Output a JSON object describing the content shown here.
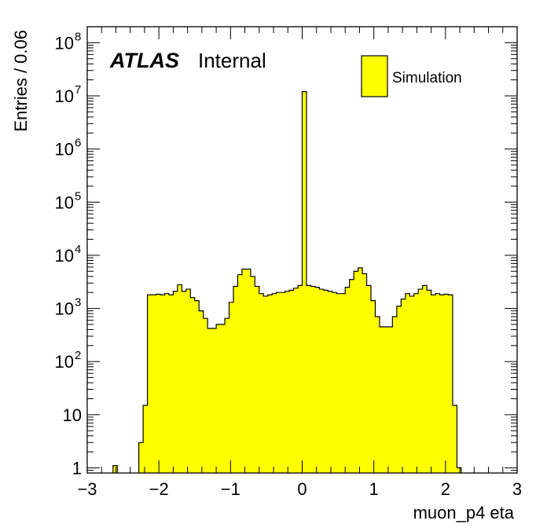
{
  "chart_data": {
    "type": "histogram",
    "experiment_label": "ATLAS",
    "status_label": "Internal",
    "xlabel": "muon_p4 eta",
    "ylabel": "Entries / 0.06",
    "xlim": [
      -3,
      3
    ],
    "ylim": [
      0.8,
      200000000
    ],
    "y_scale": "log",
    "bin_width": 0.06,
    "fill_color": "#ffff00",
    "line_color": "#000000",
    "legend": {
      "placement": "top-right",
      "entries": [
        "Simulation"
      ]
    },
    "x_ticks": [
      {
        "value": -3,
        "label": "−3"
      },
      {
        "value": -2,
        "label": "−2"
      },
      {
        "value": -1,
        "label": "−1"
      },
      {
        "value": 0,
        "label": "0"
      },
      {
        "value": 1,
        "label": "1"
      },
      {
        "value": 2,
        "label": "2"
      },
      {
        "value": 3,
        "label": "3"
      }
    ],
    "y_ticks": [
      {
        "value": 1,
        "base": "1",
        "exp": ""
      },
      {
        "value": 10,
        "base": "10",
        "exp": ""
      },
      {
        "value": 100,
        "base": "10",
        "exp": "2"
      },
      {
        "value": 1000,
        "base": "10",
        "exp": "3"
      },
      {
        "value": 10000,
        "base": "10",
        "exp": "4"
      },
      {
        "value": 100000,
        "base": "10",
        "exp": "5"
      },
      {
        "value": 1000000,
        "base": "10",
        "exp": "6"
      },
      {
        "value": 10000000,
        "base": "10",
        "exp": "7"
      },
      {
        "value": 100000000,
        "base": "10",
        "exp": "8"
      }
    ],
    "bins": [
      {
        "x0": -2.64,
        "x1": -2.58,
        "y": 1.1
      },
      {
        "x0": -2.28,
        "x1": -2.22,
        "y": 3
      },
      {
        "x0": -2.22,
        "x1": -2.16,
        "y": 15
      },
      {
        "x0": -2.16,
        "x1": -2.1,
        "y": 1800
      },
      {
        "x0": -2.1,
        "x1": -2.04,
        "y": 1800
      },
      {
        "x0": -2.04,
        "x1": -1.98,
        "y": 1850
      },
      {
        "x0": -1.98,
        "x1": -1.92,
        "y": 1800
      },
      {
        "x0": -1.92,
        "x1": -1.86,
        "y": 1900
      },
      {
        "x0": -1.86,
        "x1": -1.8,
        "y": 1800
      },
      {
        "x0": -1.8,
        "x1": -1.74,
        "y": 2100
      },
      {
        "x0": -1.74,
        "x1": -1.68,
        "y": 2800
      },
      {
        "x0": -1.68,
        "x1": -1.62,
        "y": 2100
      },
      {
        "x0": -1.62,
        "x1": -1.56,
        "y": 2300
      },
      {
        "x0": -1.56,
        "x1": -1.5,
        "y": 1600
      },
      {
        "x0": -1.5,
        "x1": -1.44,
        "y": 1400
      },
      {
        "x0": -1.44,
        "x1": -1.38,
        "y": 900
      },
      {
        "x0": -1.38,
        "x1": -1.32,
        "y": 650
      },
      {
        "x0": -1.32,
        "x1": -1.26,
        "y": 420
      },
      {
        "x0": -1.26,
        "x1": -1.2,
        "y": 420
      },
      {
        "x0": -1.2,
        "x1": -1.14,
        "y": 500
      },
      {
        "x0": -1.14,
        "x1": -1.08,
        "y": 500
      },
      {
        "x0": -1.08,
        "x1": -1.02,
        "y": 650
      },
      {
        "x0": -1.02,
        "x1": -0.96,
        "y": 1300
      },
      {
        "x0": -0.96,
        "x1": -0.9,
        "y": 2600
      },
      {
        "x0": -0.9,
        "x1": -0.84,
        "y": 4300
      },
      {
        "x0": -0.84,
        "x1": -0.78,
        "y": 5500
      },
      {
        "x0": -0.78,
        "x1": -0.72,
        "y": 5500
      },
      {
        "x0": -0.72,
        "x1": -0.66,
        "y": 4000
      },
      {
        "x0": -0.66,
        "x1": -0.6,
        "y": 2600
      },
      {
        "x0": -0.6,
        "x1": -0.54,
        "y": 1900
      },
      {
        "x0": -0.54,
        "x1": -0.48,
        "y": 1700
      },
      {
        "x0": -0.48,
        "x1": -0.42,
        "y": 1800
      },
      {
        "x0": -0.42,
        "x1": -0.36,
        "y": 1900
      },
      {
        "x0": -0.36,
        "x1": -0.3,
        "y": 2000
      },
      {
        "x0": -0.3,
        "x1": -0.24,
        "y": 2000
      },
      {
        "x0": -0.24,
        "x1": -0.18,
        "y": 2100
      },
      {
        "x0": -0.18,
        "x1": -0.12,
        "y": 2200
      },
      {
        "x0": -0.12,
        "x1": -0.06,
        "y": 2400
      },
      {
        "x0": -0.06,
        "x1": 0.0,
        "y": 2700
      },
      {
        "x0": 0.0,
        "x1": 0.06,
        "y": 12000000
      },
      {
        "x0": 0.06,
        "x1": 0.12,
        "y": 2700
      },
      {
        "x0": 0.12,
        "x1": 0.18,
        "y": 2600
      },
      {
        "x0": 0.18,
        "x1": 0.24,
        "y": 2500
      },
      {
        "x0": 0.24,
        "x1": 0.3,
        "y": 2300
      },
      {
        "x0": 0.3,
        "x1": 0.36,
        "y": 2200
      },
      {
        "x0": 0.36,
        "x1": 0.42,
        "y": 2100
      },
      {
        "x0": 0.42,
        "x1": 0.48,
        "y": 2000
      },
      {
        "x0": 0.48,
        "x1": 0.54,
        "y": 1900
      },
      {
        "x0": 0.54,
        "x1": 0.6,
        "y": 1900
      },
      {
        "x0": 0.6,
        "x1": 0.66,
        "y": 2500
      },
      {
        "x0": 0.66,
        "x1": 0.72,
        "y": 3500
      },
      {
        "x0": 0.72,
        "x1": 0.78,
        "y": 5000
      },
      {
        "x0": 0.78,
        "x1": 0.84,
        "y": 5800
      },
      {
        "x0": 0.84,
        "x1": 0.9,
        "y": 4500
      },
      {
        "x0": 0.9,
        "x1": 0.96,
        "y": 2700
      },
      {
        "x0": 0.96,
        "x1": 1.02,
        "y": 1400
      },
      {
        "x0": 1.02,
        "x1": 1.08,
        "y": 700
      },
      {
        "x0": 1.08,
        "x1": 1.14,
        "y": 450
      },
      {
        "x0": 1.14,
        "x1": 1.2,
        "y": 450
      },
      {
        "x0": 1.2,
        "x1": 1.26,
        "y": 450
      },
      {
        "x0": 1.26,
        "x1": 1.32,
        "y": 700
      },
      {
        "x0": 1.32,
        "x1": 1.38,
        "y": 1100
      },
      {
        "x0": 1.38,
        "x1": 1.44,
        "y": 1500
      },
      {
        "x0": 1.44,
        "x1": 1.5,
        "y": 1900
      },
      {
        "x0": 1.5,
        "x1": 1.56,
        "y": 1700
      },
      {
        "x0": 1.56,
        "x1": 1.62,
        "y": 1900
      },
      {
        "x0": 1.62,
        "x1": 1.68,
        "y": 2300
      },
      {
        "x0": 1.68,
        "x1": 1.74,
        "y": 2700
      },
      {
        "x0": 1.74,
        "x1": 1.8,
        "y": 2200
      },
      {
        "x0": 1.8,
        "x1": 1.86,
        "y": 1800
      },
      {
        "x0": 1.86,
        "x1": 1.92,
        "y": 1900
      },
      {
        "x0": 1.92,
        "x1": 1.98,
        "y": 1800
      },
      {
        "x0": 1.98,
        "x1": 2.04,
        "y": 1850
      },
      {
        "x0": 2.04,
        "x1": 2.1,
        "y": 1800
      },
      {
        "x0": 2.1,
        "x1": 2.16,
        "y": 15
      },
      {
        "x0": 2.16,
        "x1": 2.22,
        "y": 1.0
      }
    ]
  }
}
